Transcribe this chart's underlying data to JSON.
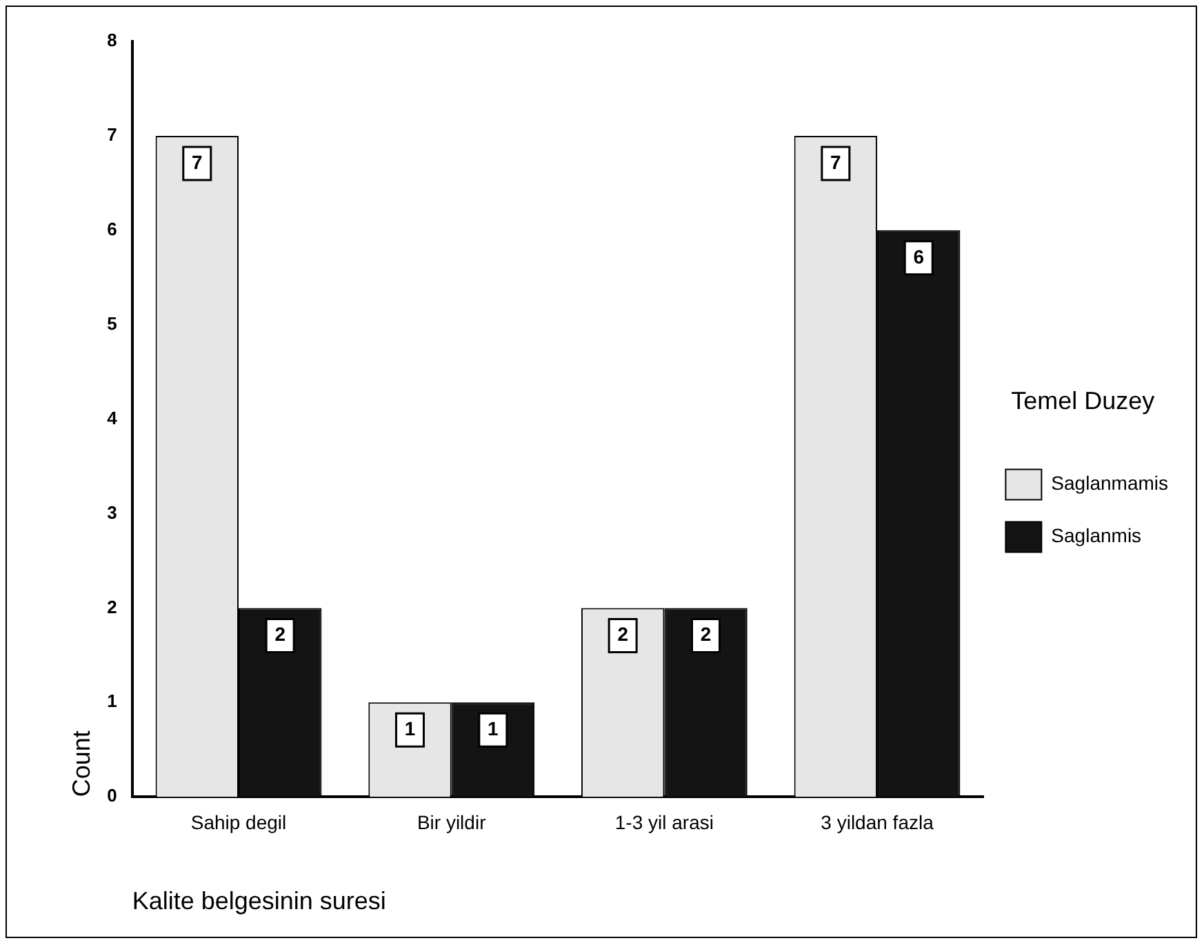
{
  "chart_data": {
    "type": "bar",
    "xlabel": "Kalite belgesinin suresi",
    "ylabel": "Count",
    "legend_title": "Temel Duzey",
    "categories": [
      "Sahip degil",
      "Bir yildir",
      "1-3 yil arasi",
      "3 yildan fazla"
    ],
    "series": [
      {
        "name": "Saglanmamis",
        "color": "#e6e6e6",
        "values": [
          7,
          1,
          2,
          7
        ]
      },
      {
        "name": "Saglanmis",
        "color": "#141414",
        "values": [
          2,
          1,
          2,
          6
        ]
      }
    ],
    "ylim": [
      0,
      8
    ],
    "yticks": [
      0,
      1,
      2,
      3,
      4,
      5,
      6,
      7,
      8
    ],
    "grid": false,
    "legend": "right",
    "data_labels": true
  }
}
